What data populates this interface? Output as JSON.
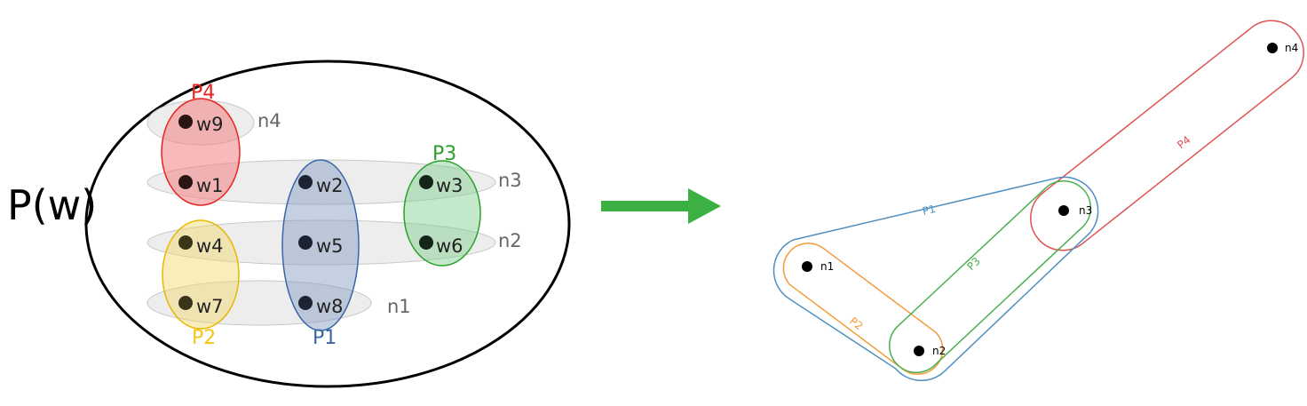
{
  "left_diagram": {
    "title": "P(w)",
    "nodes": [
      {
        "id": "w9",
        "label": "w9"
      },
      {
        "id": "w1",
        "label": "w1"
      },
      {
        "id": "w2",
        "label": "w2"
      },
      {
        "id": "w3",
        "label": "w3"
      },
      {
        "id": "w4",
        "label": "w4"
      },
      {
        "id": "w5",
        "label": "w5"
      },
      {
        "id": "w6",
        "label": "w6"
      },
      {
        "id": "w7",
        "label": "w7"
      },
      {
        "id": "w8",
        "label": "w8"
      }
    ],
    "rows": [
      {
        "id": "n4",
        "label": "n4"
      },
      {
        "id": "n3",
        "label": "n3"
      },
      {
        "id": "n2",
        "label": "n2"
      },
      {
        "id": "n1",
        "label": "n1"
      }
    ],
    "sets": [
      {
        "id": "P4",
        "label": "P4",
        "color": "#e8221e",
        "members": [
          "w9",
          "w1"
        ]
      },
      {
        "id": "P3",
        "label": "P3",
        "color": "#2ca02c",
        "members": [
          "w3",
          "w6"
        ]
      },
      {
        "id": "P2",
        "label": "P2",
        "color": "#f5c518",
        "members": [
          "w4",
          "w7"
        ]
      },
      {
        "id": "P1",
        "label": "P1",
        "color": "#3a66a6",
        "members": [
          "w2",
          "w5",
          "w8"
        ]
      }
    ]
  },
  "arrow": {
    "color": "#3cb043"
  },
  "right_diagram": {
    "nodes": [
      {
        "id": "n1",
        "label": "n1"
      },
      {
        "id": "n2",
        "label": "n2"
      },
      {
        "id": "n3",
        "label": "n3"
      },
      {
        "id": "n4",
        "label": "n4"
      }
    ],
    "hyperedges": [
      {
        "id": "P1",
        "label": "P1",
        "color": "#4f8fc0",
        "members": [
          "n1",
          "n2",
          "n3"
        ]
      },
      {
        "id": "P2",
        "label": "P2",
        "color": "#f39c3c",
        "members": [
          "n1",
          "n2"
        ]
      },
      {
        "id": "P3",
        "label": "P3",
        "color": "#4caf50",
        "members": [
          "n2",
          "n3"
        ]
      },
      {
        "id": "P4",
        "label": "P4",
        "color": "#e05252",
        "members": [
          "n3",
          "n4"
        ]
      }
    ]
  }
}
